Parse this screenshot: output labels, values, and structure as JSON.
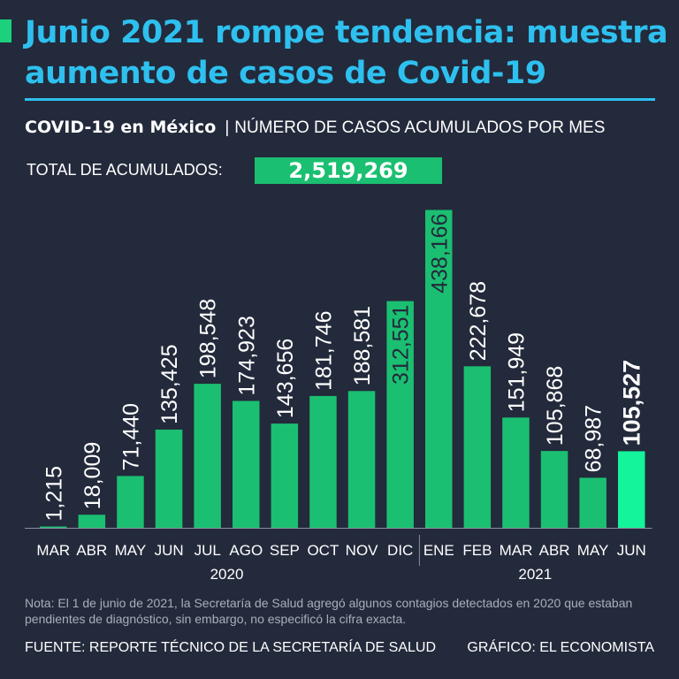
{
  "header": {
    "title": "Junio 2021 rompe tendencia: muestra aumento de casos de Covid-19",
    "subtitle_bold": "COVID-19 en México",
    "subtitle_sep": "|",
    "subtitle_rest": "NÚMERO DE CASOS ACUMULADOS POR MES"
  },
  "total": {
    "label": "TOTAL DE ACUMULADOS:",
    "value": "2,519,269"
  },
  "chart_data": {
    "type": "bar",
    "title": "NÚMERO DE CASOS ACUMULADOS POR MES",
    "categories": [
      "MAR",
      "ABR",
      "MAY",
      "JUN",
      "JUL",
      "AGO",
      "SEP",
      "OCT",
      "NOV",
      "DIC",
      "ENE",
      "FEB",
      "MAR",
      "ABR",
      "MAY",
      "JUN"
    ],
    "values": [
      1215,
      18009,
      71440,
      135425,
      198548,
      174923,
      143656,
      181746,
      188581,
      312551,
      438166,
      222678,
      151949,
      105868,
      68987,
      105527
    ],
    "value_labels": [
      "1,215",
      "18,009",
      "71,440",
      "135,425",
      "198,548",
      "174,923",
      "143,656",
      "181,746",
      "188,581",
      "312,551",
      "438,166",
      "222,678",
      "151,949",
      "105,868",
      "68,987",
      "105,527"
    ],
    "groups": [
      {
        "label": "2020",
        "first": 0,
        "last": 9
      },
      {
        "label": "2021",
        "first": 10,
        "last": 15
      }
    ],
    "highlight_index": 15,
    "ylim": [
      0,
      440000
    ],
    "xlabel": "",
    "ylabel": "",
    "colors": {
      "bar": "#1bbf71",
      "highlight": "#14f59b",
      "inside_label": "#232a3b",
      "label": "#ffffff"
    }
  },
  "footer": {
    "note": "Nota: El 1 de junio de 2021, la Secretaría de Salud agregó algunos contagios detectados en 2020 que estaban pendientes de diagnóstico, sin embargo, no especificó la cifra exacta.",
    "source": "FUENTE: REPORTE TÉCNICO DE LA SECRETARÍA DE SALUD",
    "credit": "GRÁFICO: EL ECONOMISTA"
  }
}
